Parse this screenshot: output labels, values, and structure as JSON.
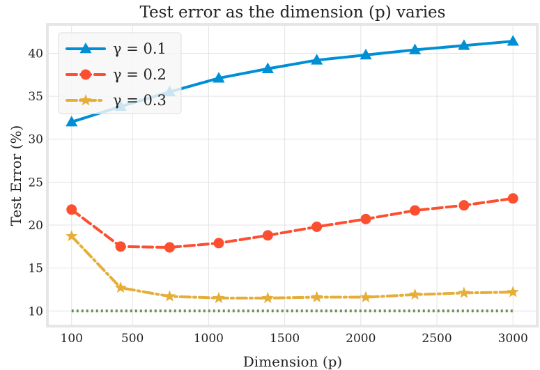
{
  "chart_data": {
    "type": "line",
    "title": "Test error as the dimension (p) varies",
    "xlabel": "Dimension (p)",
    "ylabel": "Test Error (%)",
    "xlim": [
      -50,
      3150
    ],
    "ylim": [
      8.4,
      43.2
    ],
    "xticks": [
      "100",
      "500",
      "1000",
      "1500",
      "2000",
      "2500",
      "3000"
    ],
    "yticks": [
      "10",
      "15",
      "20",
      "25",
      "30",
      "35",
      "40"
    ],
    "grid": true,
    "legend_position": "top-left",
    "x": [
      100,
      422,
      744,
      1067,
      1389,
      1711,
      2033,
      2356,
      2678,
      3000
    ],
    "series": [
      {
        "name": "γ = 0.1",
        "color": "#008fd5",
        "marker": "triangle",
        "dash": "solid",
        "values": [
          32.0,
          33.8,
          35.5,
          37.1,
          38.2,
          39.2,
          39.8,
          40.4,
          40.9,
          41.4
        ]
      },
      {
        "name": "γ = 0.2",
        "color": "#fc4f30",
        "marker": "circle",
        "dash": "dashed",
        "values": [
          21.8,
          17.5,
          17.4,
          17.9,
          18.8,
          19.8,
          20.7,
          21.7,
          22.3,
          23.1
        ]
      },
      {
        "name": "γ = 0.3",
        "color": "#e5ae38",
        "marker": "star",
        "dash": "dashdot",
        "values": [
          18.7,
          12.7,
          11.7,
          11.5,
          11.5,
          11.6,
          11.6,
          11.9,
          12.1,
          12.2
        ]
      },
      {
        "color": "#6d904f",
        "marker": "none",
        "dash": "dotted",
        "values": [
          10.0,
          10.0,
          10.0,
          10.0,
          10.0,
          10.0,
          10.0,
          10.0,
          10.0,
          10.0
        ]
      }
    ]
  }
}
